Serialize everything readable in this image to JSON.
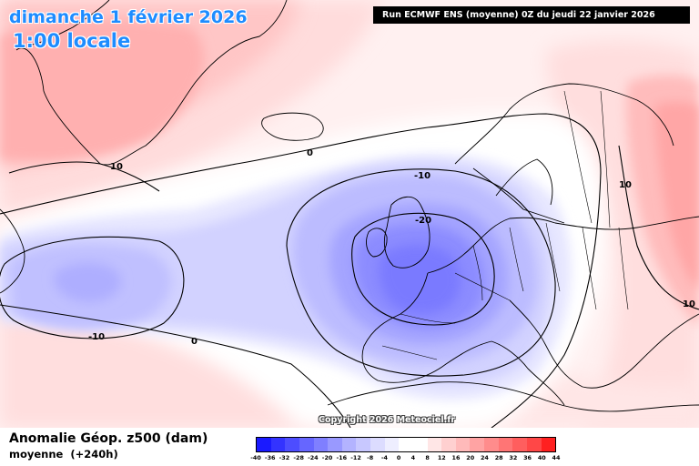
{
  "header": {
    "title": "dimanche 1 février 2026",
    "subtitle": "1:00 locale",
    "run_info": "Run ECMWF ENS (moyenne) 0Z du jeudi 22 janvier 2026"
  },
  "map": {
    "field": "Anomalie Géop. z500 (dam)",
    "statistic": "moyenne",
    "lead_time": "(+240h)",
    "copyright": "Copyright 2026 Meteociel.fr",
    "contour_labels": [
      "0",
      "-10",
      "-20",
      "-10",
      "0",
      "10",
      "10",
      "10",
      "-10"
    ],
    "land_outline_color": "#000000",
    "colors": {
      "neutral": "#ffffff",
      "positive_accent": "#ff2020",
      "negative_accent": "#2020ff"
    }
  },
  "legend": {
    "ticks": [
      "-40",
      "-36",
      "-32",
      "-28",
      "-24",
      "-20",
      "-16",
      "-12",
      "-8",
      "-4",
      "0",
      "4",
      "8",
      "12",
      "16",
      "20",
      "24",
      "28",
      "32",
      "36",
      "40",
      "44"
    ],
    "colors": [
      "#1a1aff",
      "#3333ff",
      "#4d4dff",
      "#6666ff",
      "#7f7fff",
      "#9999ff",
      "#b3b3ff",
      "#c8c8ff",
      "#dcdcff",
      "#eeeeff",
      "#ffffff",
      "#ffffff",
      "#ffe6e6",
      "#ffd0d0",
      "#ffbaba",
      "#ffa3a3",
      "#ff8c8c",
      "#ff7575",
      "#ff5e5e",
      "#ff4747",
      "#ff2020"
    ]
  }
}
